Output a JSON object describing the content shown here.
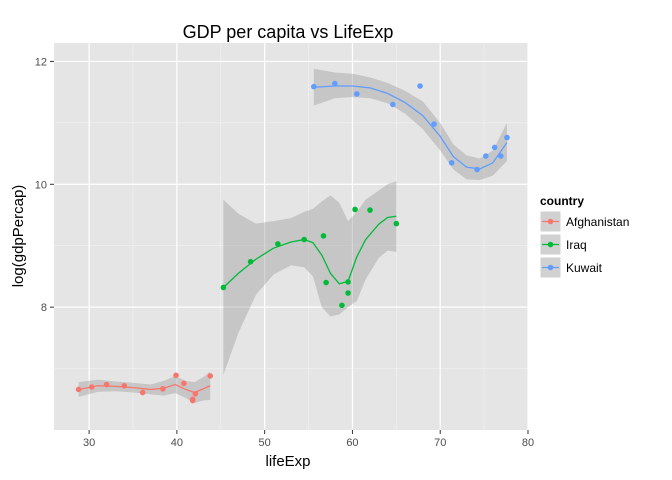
{
  "chart_data": {
    "type": "scatter",
    "title": "GDP per capita vs LifeExp",
    "xlabel": "lifeExp",
    "ylabel": "log(gdpPercap)",
    "xlim": [
      26,
      80
    ],
    "ylim": [
      6.0,
      12.3
    ],
    "xticks": [
      30,
      40,
      50,
      60,
      70,
      80
    ],
    "yticks": [
      8,
      10,
      12
    ],
    "x_tick_labels": [
      "30",
      "40",
      "50",
      "60",
      "70",
      "80"
    ],
    "y_tick_labels": [
      "8",
      "10",
      "12"
    ],
    "grid": true,
    "smoother": "loess with confidence band",
    "legend": {
      "title": "country",
      "position": "right"
    },
    "series": [
      {
        "name": "Afghanistan",
        "color": "#F8766D",
        "points": [
          [
            28.8,
            6.66
          ],
          [
            30.3,
            6.7
          ],
          [
            32.0,
            6.74
          ],
          [
            34.0,
            6.72
          ],
          [
            36.1,
            6.61
          ],
          [
            38.4,
            6.67
          ],
          [
            39.9,
            6.89
          ],
          [
            40.8,
            6.76
          ],
          [
            41.8,
            6.48
          ],
          [
            42.1,
            6.59
          ],
          [
            41.8,
            6.5
          ],
          [
            43.8,
            6.88
          ]
        ],
        "fit": [
          [
            28.8,
            6.66
          ],
          [
            31,
            6.72
          ],
          [
            33,
            6.71
          ],
          [
            35,
            6.69
          ],
          [
            37,
            6.66
          ],
          [
            38.5,
            6.68
          ],
          [
            39.8,
            6.74
          ],
          [
            41,
            6.66
          ],
          [
            42,
            6.61
          ],
          [
            43,
            6.67
          ],
          [
            43.8,
            6.72
          ]
        ],
        "band_upper": [
          [
            28.8,
            6.78
          ],
          [
            31,
            6.82
          ],
          [
            33,
            6.79
          ],
          [
            35,
            6.77
          ],
          [
            37,
            6.74
          ],
          [
            38.5,
            6.8
          ],
          [
            39.8,
            6.88
          ],
          [
            41,
            6.8
          ],
          [
            42,
            6.78
          ],
          [
            43,
            6.86
          ],
          [
            43.8,
            6.95
          ]
        ],
        "band_lower": [
          [
            28.8,
            6.54
          ],
          [
            31,
            6.62
          ],
          [
            33,
            6.63
          ],
          [
            35,
            6.61
          ],
          [
            37,
            6.58
          ],
          [
            38.5,
            6.56
          ],
          [
            39.8,
            6.6
          ],
          [
            41,
            6.52
          ],
          [
            42,
            6.44
          ],
          [
            43,
            6.48
          ],
          [
            43.8,
            6.49
          ]
        ]
      },
      {
        "name": "Iraq",
        "color": "#00BA38",
        "points": [
          [
            45.3,
            8.32
          ],
          [
            48.4,
            8.74
          ],
          [
            51.5,
            9.03
          ],
          [
            54.5,
            9.1
          ],
          [
            56.7,
            9.16
          ],
          [
            57.0,
            8.4
          ],
          [
            58.8,
            8.03
          ],
          [
            59.5,
            8.23
          ],
          [
            59.5,
            8.41
          ],
          [
            60.3,
            9.59
          ],
          [
            62.0,
            9.58
          ],
          [
            65.0,
            9.36
          ]
        ],
        "fit": [
          [
            45.3,
            8.32
          ],
          [
            47,
            8.55
          ],
          [
            49,
            8.78
          ],
          [
            51,
            8.96
          ],
          [
            53,
            9.06
          ],
          [
            54.5,
            9.1
          ],
          [
            55.5,
            9.05
          ],
          [
            56.5,
            8.85
          ],
          [
            57.5,
            8.55
          ],
          [
            58.5,
            8.38
          ],
          [
            59.5,
            8.42
          ],
          [
            60.5,
            8.82
          ],
          [
            61.5,
            9.1
          ],
          [
            63,
            9.35
          ],
          [
            64,
            9.46
          ],
          [
            65,
            9.48
          ]
        ],
        "band_upper": [
          [
            45.3,
            9.75
          ],
          [
            47,
            9.52
          ],
          [
            49,
            9.36
          ],
          [
            51,
            9.4
          ],
          [
            53,
            9.45
          ],
          [
            54.5,
            9.55
          ],
          [
            55.5,
            9.6
          ],
          [
            56.5,
            9.72
          ],
          [
            57.5,
            9.82
          ],
          [
            58.5,
            9.7
          ],
          [
            59.5,
            9.4
          ],
          [
            60.5,
            9.55
          ],
          [
            61.5,
            9.75
          ],
          [
            63,
            9.9
          ],
          [
            64,
            10.0
          ],
          [
            65,
            10.05
          ]
        ],
        "band_lower": [
          [
            45.3,
            6.9
          ],
          [
            47,
            7.58
          ],
          [
            49,
            8.2
          ],
          [
            51,
            8.53
          ],
          [
            53,
            8.68
          ],
          [
            54.5,
            8.65
          ],
          [
            55.5,
            8.5
          ],
          [
            56.5,
            8.0
          ],
          [
            57.5,
            7.85
          ],
          [
            58.5,
            7.88
          ],
          [
            59.5,
            8.0
          ],
          [
            60.5,
            8.1
          ],
          [
            61.5,
            8.45
          ],
          [
            63,
            8.8
          ],
          [
            64,
            8.92
          ],
          [
            65,
            8.9
          ]
        ]
      },
      {
        "name": "Kuwait",
        "color": "#619CFF",
        "points": [
          [
            55.6,
            11.59
          ],
          [
            58.0,
            11.64
          ],
          [
            60.5,
            11.47
          ],
          [
            64.6,
            11.3
          ],
          [
            67.7,
            11.6
          ],
          [
            69.3,
            10.98
          ],
          [
            71.3,
            10.35
          ],
          [
            74.2,
            10.24
          ],
          [
            75.2,
            10.46
          ],
          [
            76.2,
            10.6
          ],
          [
            76.9,
            10.46
          ],
          [
            77.6,
            10.76
          ]
        ],
        "fit": [
          [
            55.6,
            11.58
          ],
          [
            58,
            11.6
          ],
          [
            60,
            11.6
          ],
          [
            62,
            11.57
          ],
          [
            64,
            11.48
          ],
          [
            66,
            11.33
          ],
          [
            68,
            11.12
          ],
          [
            70,
            10.78
          ],
          [
            71.5,
            10.45
          ],
          [
            73,
            10.28
          ],
          [
            74.5,
            10.25
          ],
          [
            76,
            10.35
          ],
          [
            77.6,
            10.68
          ]
        ],
        "band_upper": [
          [
            55.6,
            11.88
          ],
          [
            58,
            11.82
          ],
          [
            60,
            11.8
          ],
          [
            62,
            11.74
          ],
          [
            64,
            11.65
          ],
          [
            66,
            11.52
          ],
          [
            68,
            11.35
          ],
          [
            70,
            11.0
          ],
          [
            71.5,
            10.65
          ],
          [
            73,
            10.47
          ],
          [
            74.5,
            10.42
          ],
          [
            76,
            10.55
          ],
          [
            77.6,
            11.0
          ]
        ],
        "band_lower": [
          [
            55.6,
            11.28
          ],
          [
            58,
            11.4
          ],
          [
            60,
            11.42
          ],
          [
            62,
            11.4
          ],
          [
            64,
            11.32
          ],
          [
            66,
            11.15
          ],
          [
            68,
            10.9
          ],
          [
            70,
            10.55
          ],
          [
            71.5,
            10.24
          ],
          [
            73,
            10.08
          ],
          [
            74.5,
            10.07
          ],
          [
            76,
            10.14
          ],
          [
            77.6,
            10.38
          ]
        ]
      }
    ]
  }
}
